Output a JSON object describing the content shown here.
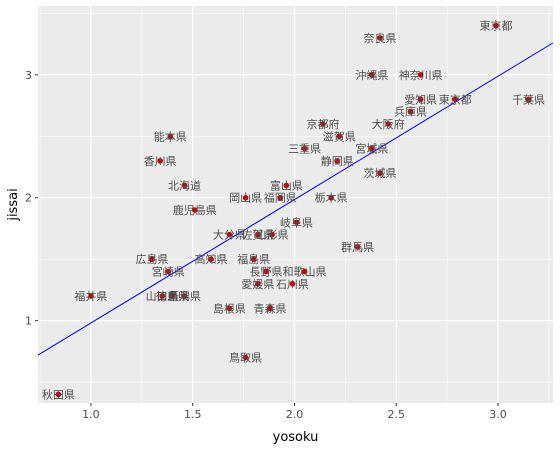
{
  "chart_data": {
    "type": "scatter",
    "title": "",
    "xlabel": "yosoku",
    "ylabel": "jissai",
    "xlim": [
      0.74,
      3.27
    ],
    "ylim": [
      0.33,
      3.56
    ],
    "xticks": [
      1.0,
      1.5,
      2.0,
      2.5,
      3.0
    ],
    "xtick_labels": [
      "1.0",
      "1.5",
      "2.0",
      "2.5",
      "3.0"
    ],
    "yticks": [
      1,
      2,
      3
    ],
    "ytick_labels": [
      "1",
      "2",
      "3"
    ],
    "grid": true,
    "background": "#ebebeb",
    "point_color": "#cc0000",
    "line_color": "#0000ff",
    "fit_line": {
      "x": [
        0.74,
        3.27
      ],
      "y": [
        0.72,
        3.26
      ]
    },
    "points": [
      {
        "label": "東京都",
        "x": 2.99,
        "y": 3.4
      },
      {
        "label": "奈良県",
        "x": 2.42,
        "y": 3.3
      },
      {
        "label": "沖縄県",
        "x": 2.38,
        "y": 3.0
      },
      {
        "label": "神奈川県",
        "x": 2.62,
        "y": 3.0
      },
      {
        "label": "愛知県",
        "x": 2.62,
        "y": 2.8
      },
      {
        "label": "東京都",
        "x": 2.79,
        "y": 2.8
      },
      {
        "label": "千葉県",
        "x": 3.15,
        "y": 2.8
      },
      {
        "label": "兵庫県",
        "x": 2.57,
        "y": 2.7
      },
      {
        "label": "大阪府",
        "x": 2.46,
        "y": 2.6
      },
      {
        "label": "京都府",
        "x": 2.14,
        "y": 2.6
      },
      {
        "label": "滋賀県",
        "x": 2.22,
        "y": 2.5
      },
      {
        "label": "能本県",
        "x": 1.39,
        "y": 2.5
      },
      {
        "label": "三重県",
        "x": 2.05,
        "y": 2.4
      },
      {
        "label": "宮城県",
        "x": 2.38,
        "y": 2.4
      },
      {
        "label": "静岡県",
        "x": 2.21,
        "y": 2.3
      },
      {
        "label": "香川県",
        "x": 1.34,
        "y": 2.3
      },
      {
        "label": "茨城県",
        "x": 2.42,
        "y": 2.2
      },
      {
        "label": "北海道",
        "x": 1.46,
        "y": 2.1
      },
      {
        "label": "富山県",
        "x": 1.96,
        "y": 2.1
      },
      {
        "label": "岡山県",
        "x": 1.76,
        "y": 2.0
      },
      {
        "label": "福岡県",
        "x": 1.93,
        "y": 2.0
      },
      {
        "label": "栃木県",
        "x": 2.18,
        "y": 2.0
      },
      {
        "label": "鹿児島県",
        "x": 1.51,
        "y": 1.9
      },
      {
        "label": "岐阜県",
        "x": 2.01,
        "y": 1.8
      },
      {
        "label": "大分県",
        "x": 1.68,
        "y": 1.7
      },
      {
        "label": "佐賀県",
        "x": 1.82,
        "y": 1.7
      },
      {
        "label": "山形県",
        "x": 1.89,
        "y": 1.7
      },
      {
        "label": "群馬県",
        "x": 2.31,
        "y": 1.6
      },
      {
        "label": "広島県",
        "x": 1.3,
        "y": 1.5
      },
      {
        "label": "高知県",
        "x": 1.59,
        "y": 1.5
      },
      {
        "label": "福島県",
        "x": 1.8,
        "y": 1.5
      },
      {
        "label": "宮崎県",
        "x": 1.38,
        "y": 1.4
      },
      {
        "label": "長野県",
        "x": 1.86,
        "y": 1.4
      },
      {
        "label": "和歌山県",
        "x": 2.05,
        "y": 1.4
      },
      {
        "label": "愛媛県",
        "x": 1.82,
        "y": 1.3
      },
      {
        "label": "石川県",
        "x": 1.99,
        "y": 1.3
      },
      {
        "label": "福井県",
        "x": 1.0,
        "y": 1.2
      },
      {
        "label": "山口県",
        "x": 1.35,
        "y": 1.2
      },
      {
        "label": "徳島県",
        "x": 1.4,
        "y": 1.2
      },
      {
        "label": "新潟県",
        "x": 1.46,
        "y": 1.2
      },
      {
        "label": "島根県",
        "x": 1.68,
        "y": 1.1
      },
      {
        "label": "青森県",
        "x": 1.88,
        "y": 1.1
      },
      {
        "label": "鳥取県",
        "x": 1.76,
        "y": 0.7
      },
      {
        "label": "秋田県",
        "x": 0.84,
        "y": 0.4
      }
    ]
  }
}
